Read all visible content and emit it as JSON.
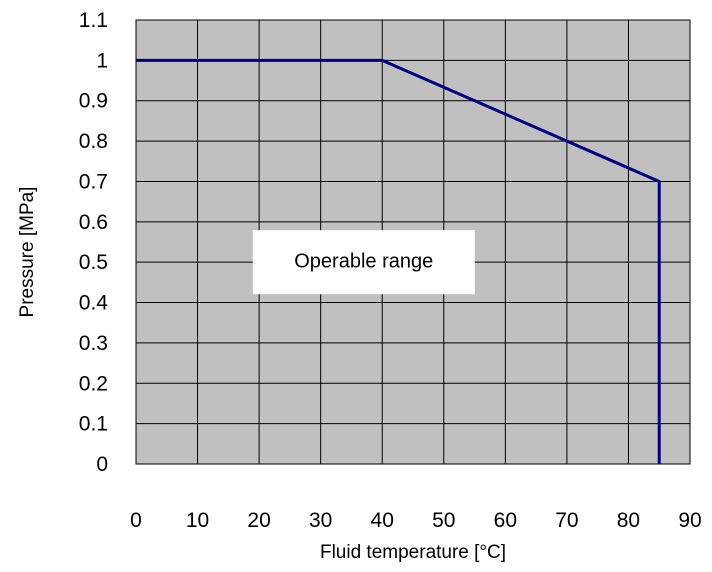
{
  "chart_data": {
    "type": "line",
    "title": "",
    "xlabel": "Fluid temperature [°C]",
    "ylabel": "Pressure [MPa]",
    "xlim": [
      0,
      90
    ],
    "ylim": [
      0,
      1.1
    ],
    "x_ticks": [
      "0",
      "10",
      "20",
      "30",
      "40",
      "50",
      "60",
      "70",
      "80",
      "90"
    ],
    "y_ticks": [
      "0",
      "0.1",
      "0.2",
      "0.3",
      "0.4",
      "0.5",
      "0.6",
      "0.7",
      "0.8",
      "0.9",
      "1",
      "1.1"
    ],
    "grid": true,
    "legend": "none",
    "series": [
      {
        "x": [
          0,
          40,
          85,
          85
        ],
        "y": [
          1.0,
          1.0,
          0.7,
          0.0
        ]
      }
    ],
    "annotations": [
      {
        "text": "Operable range",
        "x": 37,
        "y": 0.5
      }
    ],
    "colors": {
      "plot_background": "#c0c0c0",
      "grid": "#000000",
      "line": "#000080",
      "annotation_box": "#ffffff"
    }
  }
}
